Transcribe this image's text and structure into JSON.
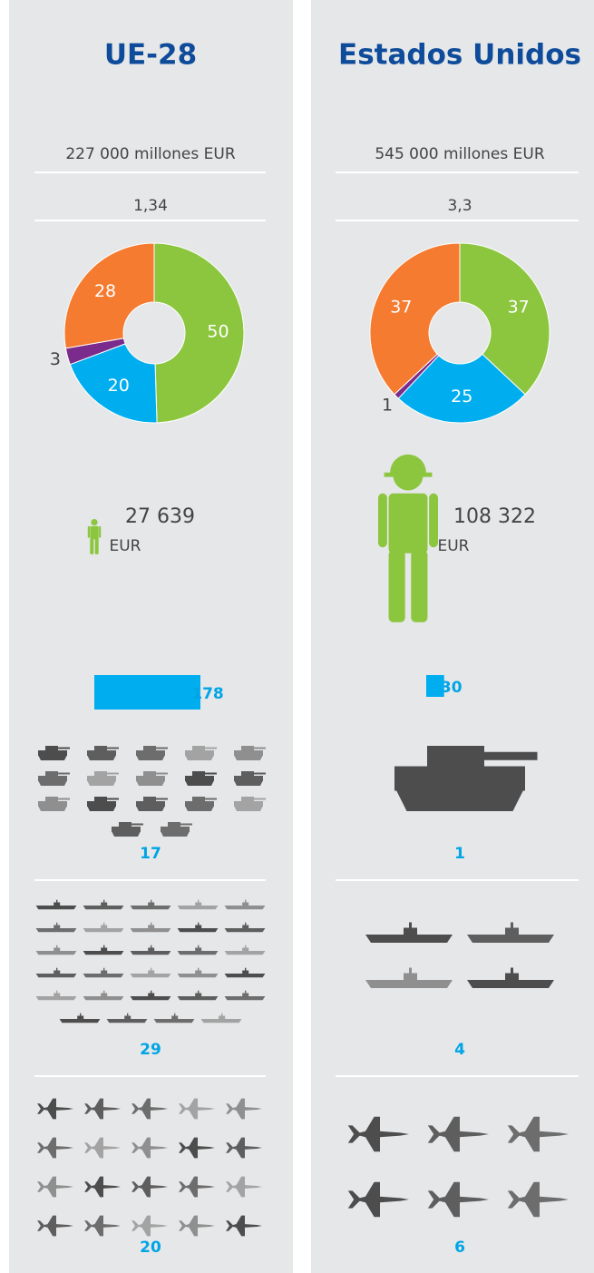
{
  "columns": [
    {
      "title": "UE-28",
      "spending": "227 000 millones EUR",
      "gdp_share": "1,34",
      "donut": {
        "values": [
          50,
          20,
          3,
          28
        ],
        "colors": [
          "#8cc63f",
          "#00aeef",
          "#7b2b8c",
          "#f47b30"
        ]
      },
      "per_soldier": {
        "value": "27 639",
        "unit": "EUR"
      },
      "bar": 178,
      "tanks": 17,
      "ships": 29,
      "aircraft": 20
    },
    {
      "title": "Estados Unidos",
      "spending": "545 000 millones EUR",
      "gdp_share": "3,3",
      "donut": {
        "values": [
          37,
          25,
          1,
          37
        ],
        "colors": [
          "#8cc63f",
          "#00aeef",
          "#7b2b8c",
          "#f47b30"
        ]
      },
      "per_soldier": {
        "value": "108 322",
        "unit": "EUR"
      },
      "bar": 30,
      "tanks": 1,
      "ships": 4,
      "aircraft": 6
    }
  ]
}
